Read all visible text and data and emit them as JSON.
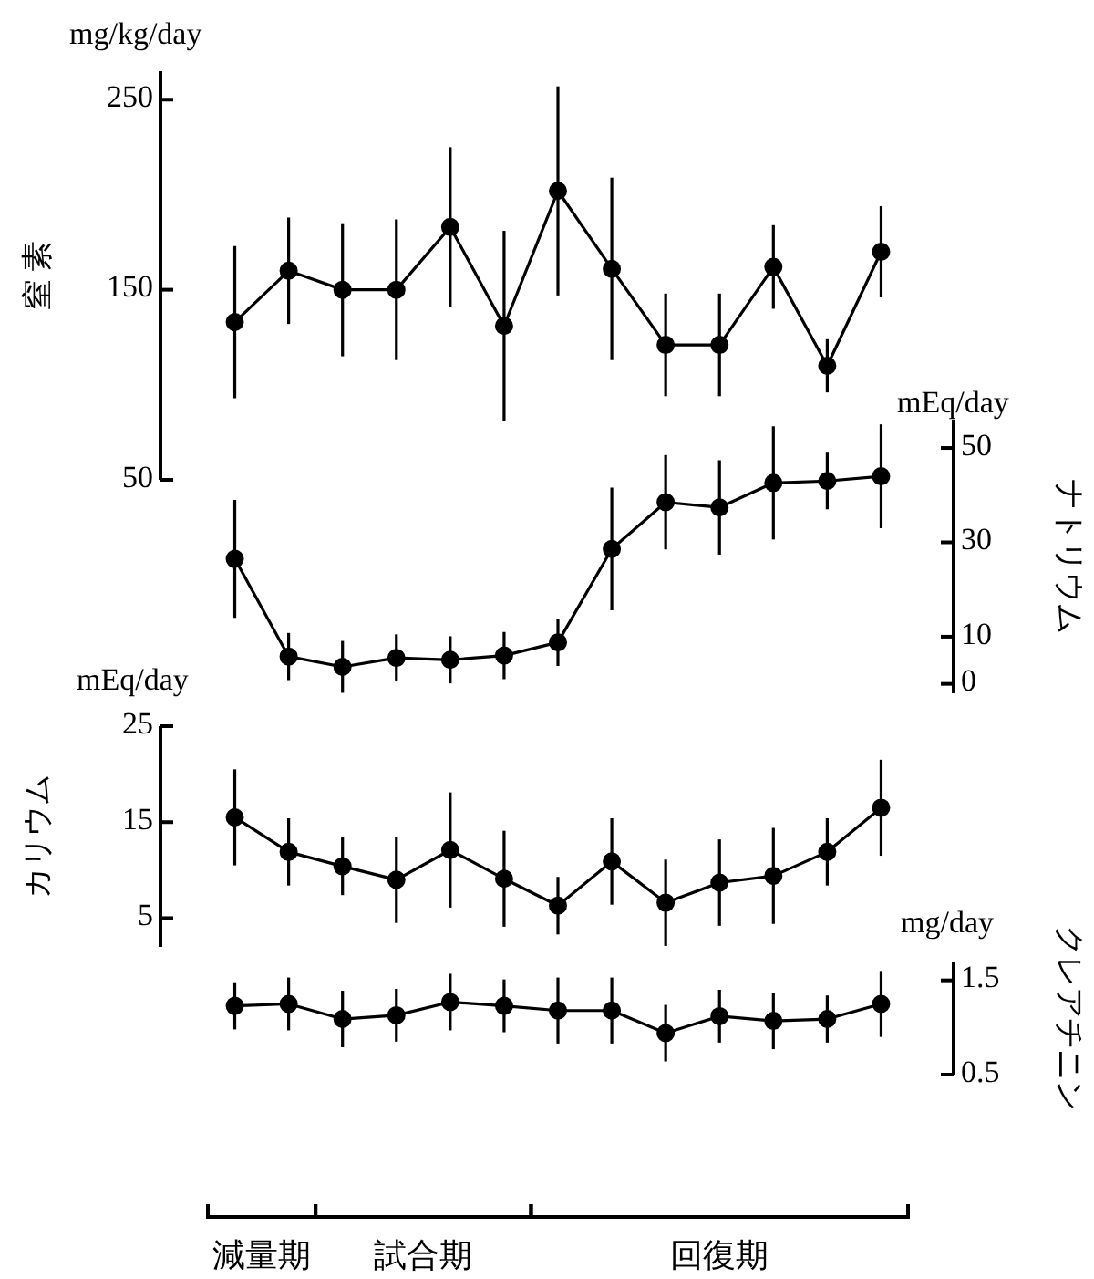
{
  "chart_data": [
    {
      "type": "line",
      "categories": [
        null,
        null,
        null,
        null,
        null,
        null,
        null,
        null,
        null,
        null,
        null,
        null,
        null
      ],
      "ylim": [
        50,
        265
      ],
      "yticks": [
        50,
        150,
        250
      ],
      "ylabel": "窒 素",
      "marker": "circle",
      "annotations": [
        "mg/kg/day"
      ],
      "series": [
        {
          "color": "#000000",
          "values": [
            133,
            160,
            150,
            150,
            183,
            131,
            202,
            161,
            121,
            121,
            162,
            110,
            170
          ],
          "errors": [
            40,
            28,
            35,
            37,
            42,
            50,
            55,
            48,
            27,
            27,
            22,
            14,
            24
          ]
        }
      ]
    },
    {
      "type": "line",
      "categories": [
        null,
        null,
        null,
        null,
        null,
        null,
        null,
        null,
        null,
        null,
        null,
        null,
        null
      ],
      "ylim": [
        -2,
        56
      ],
      "yticks": [
        0,
        10,
        30,
        50
      ],
      "ylabel": "ナトリウム",
      "marker": "circle",
      "annotations": [
        "mEq/day"
      ],
      "series": [
        {
          "color": "#000000",
          "values": [
            26.5,
            5.8,
            3.6,
            5.5,
            5.1,
            6,
            8.8,
            28.6,
            38.5,
            37.4,
            42.6,
            43,
            44
          ],
          "errors": [
            12.5,
            5,
            5.5,
            5,
            5,
            5,
            5,
            13,
            10,
            10,
            12,
            6,
            11
          ]
        }
      ]
    },
    {
      "type": "line",
      "categories": [
        null,
        null,
        null,
        null,
        null,
        null,
        null,
        null,
        null,
        null,
        null,
        null,
        null
      ],
      "ylim": [
        2,
        25
      ],
      "yticks": [
        5,
        15,
        25
      ],
      "ylabel": "カリウム",
      "marker": "circle",
      "annotations": [
        "mEq/day"
      ],
      "series": [
        {
          "color": "#000000",
          "values": [
            15.5,
            11.9,
            10.4,
            9,
            12.1,
            9.1,
            6.3,
            10.9,
            6.6,
            8.7,
            9.4,
            11.9,
            16.5
          ],
          "errors": [
            5,
            3.5,
            3,
            4.5,
            6,
            5,
            3,
            4.5,
            4.5,
            4.5,
            5,
            3.5,
            5
          ]
        }
      ]
    },
    {
      "type": "line",
      "categories": [
        null,
        null,
        null,
        null,
        null,
        null,
        null,
        null,
        null,
        null,
        null,
        null,
        null
      ],
      "ylim": [
        0.5,
        1.7
      ],
      "yticks": [
        0.5,
        1.5
      ],
      "ylabel": "クレアチニン",
      "marker": "circle",
      "annotations": [
        "mg/day",
        "減量期",
        "試合期",
        "回復期"
      ],
      "series": [
        {
          "color": "#000000",
          "values": [
            1.23,
            1.25,
            1.09,
            1.13,
            1.27,
            1.23,
            1.18,
            1.18,
            0.94,
            1.12,
            1.07,
            1.09,
            1.25
          ],
          "errors": [
            0.25,
            0.28,
            0.3,
            0.28,
            0.3,
            0.28,
            0.35,
            0.35,
            0.3,
            0.28,
            0.3,
            0.25,
            0.35
          ]
        }
      ]
    }
  ]
}
